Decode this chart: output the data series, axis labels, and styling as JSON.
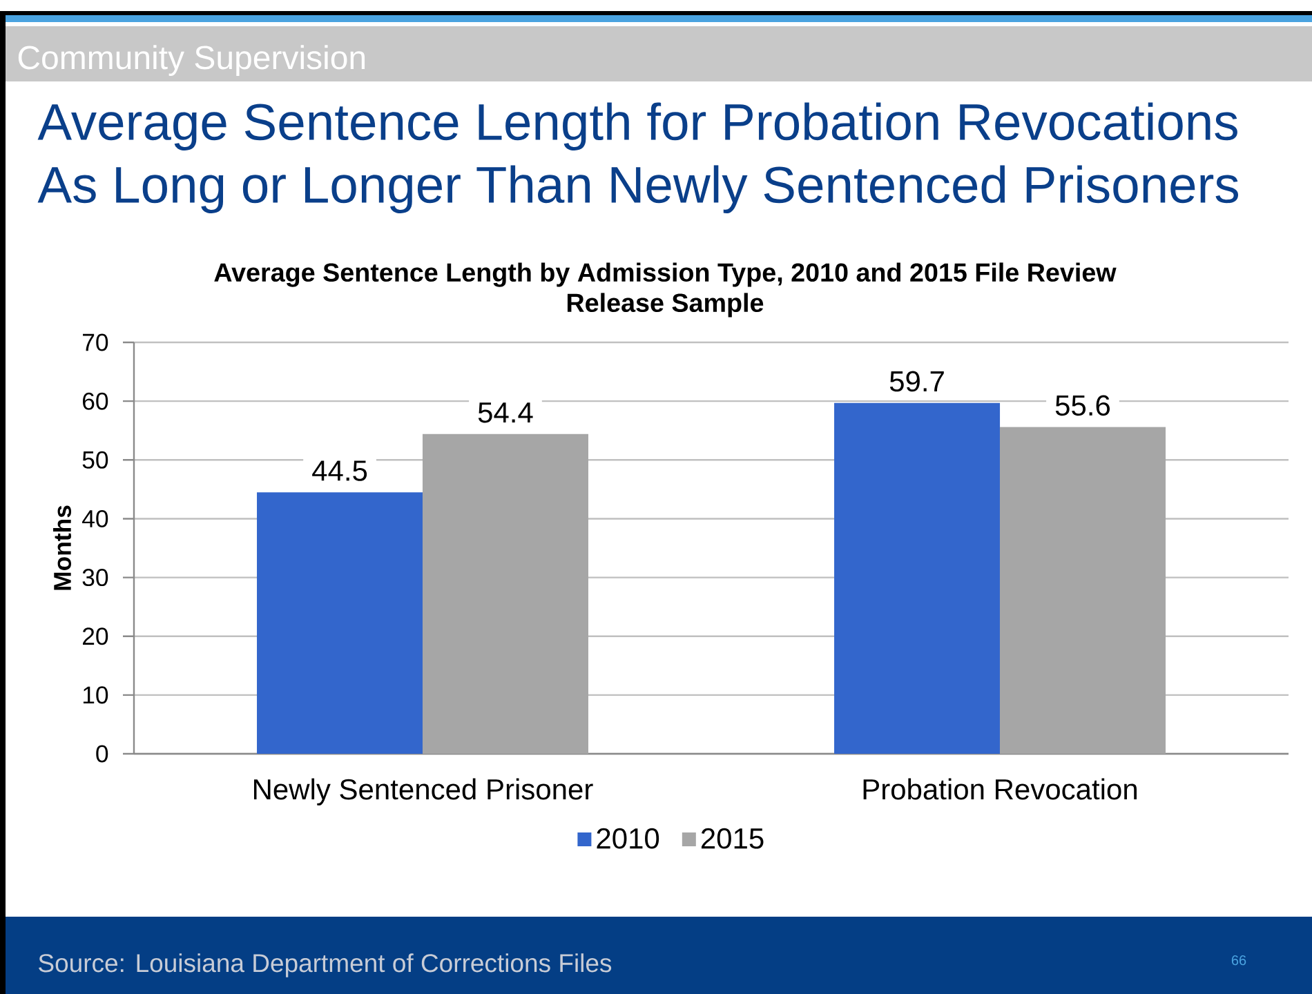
{
  "chart_data": {
    "type": "bar",
    "title": "Average Sentence Length for Probation Revocations As Long or Longer Than Newly Sentenced Prisoners",
    "subtitle": "Average Sentence Length by Admission Type, 2010 and 2015 File Review Release Sample",
    "ylabel": "Months",
    "categories": [
      "Newly Sentenced Prisoner",
      "Probation Revocation"
    ],
    "series": [
      {
        "name": "2010",
        "color": "#3366cc",
        "values": [
          44.5,
          59.7
        ]
      },
      {
        "name": "2015",
        "color": "#a6a6a6",
        "values": [
          54.4,
          55.6
        ]
      }
    ],
    "ylim": [
      0,
      70
    ],
    "yticks": [
      0,
      10,
      20,
      30,
      40,
      50,
      60,
      70
    ],
    "grid": "y",
    "legend": "bottom",
    "data_labels": true,
    "annotations": [
      "Community Supervision",
      "Source: Louisiana Department of Corrections Files",
      "66"
    ]
  }
}
